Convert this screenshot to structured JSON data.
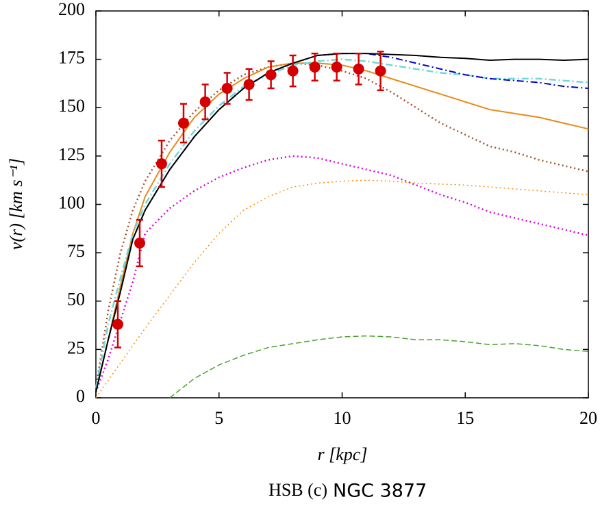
{
  "chart_data": {
    "type": "line",
    "xlabel": "r [kpc]",
    "ylabel": "v(r) [km s⁻¹]",
    "caption": {
      "sample": "HSB (c)",
      "galaxy": "NGC 3877"
    },
    "xlim": [
      0,
      20
    ],
    "ylim": [
      0,
      200
    ],
    "xticks": [
      0,
      5,
      10,
      15,
      20
    ],
    "yticks": [
      0,
      25,
      50,
      75,
      100,
      125,
      150,
      175,
      200
    ],
    "x": [
      0,
      0.5,
      1,
      1.5,
      2,
      3,
      4,
      5,
      6,
      7,
      8,
      9,
      10,
      11,
      12,
      13,
      14,
      15,
      16,
      17,
      18,
      19,
      20
    ],
    "series": [
      {
        "color": "#ff8c00",
        "dash": "dotted",
        "width": 1.5,
        "values": [
          0,
          9,
          18,
          27,
          36,
          53,
          70,
          85,
          97,
          104,
          109,
          111,
          112,
          112.5,
          112,
          111,
          110.5,
          110,
          109,
          108,
          107,
          106,
          105
        ]
      },
      {
        "color": "#4aa02c",
        "dash": "dashed",
        "width": 1.5,
        "values": [
          null,
          null,
          null,
          null,
          null,
          0,
          10,
          17,
          22,
          26,
          28,
          30,
          31.5,
          32,
          31.5,
          30,
          30,
          29,
          27.5,
          28,
          27,
          25,
          24
        ]
      },
      {
        "color": "#e000e0",
        "dash": "dotted",
        "width": 2.5,
        "values": [
          3,
          20,
          40,
          60,
          85,
          98,
          107,
          114,
          119,
          123,
          125,
          124,
          121,
          118,
          115,
          110,
          105,
          101,
          96,
          93,
          90,
          87,
          84
        ]
      },
      {
        "color": "#a0522d",
        "dash": "dotted",
        "width": 2.5,
        "values": [
          5,
          45,
          75,
          97,
          112,
          133,
          148,
          159,
          167,
          171,
          173,
          172,
          169,
          165,
          158,
          150,
          142,
          136,
          130,
          127,
          123,
          120,
          117
        ]
      },
      {
        "color": "#e88a1a",
        "dash": "solid",
        "width": 2,
        "values": [
          3,
          30,
          58,
          85,
          104,
          127,
          145,
          157,
          165,
          171,
          173,
          173,
          172,
          169,
          165,
          161,
          157,
          153,
          149,
          147,
          145,
          142,
          139
        ]
      },
      {
        "color": "#70d8d8",
        "dash": "dashdot",
        "width": 2.5,
        "values": [
          5,
          38,
          62,
          85,
          100,
          121,
          138,
          151,
          161,
          167,
          172,
          174,
          175,
          174,
          172,
          170,
          168,
          167,
          165,
          165,
          165,
          164,
          163
        ]
      },
      {
        "color": "#0000cc",
        "dash": "dashdot",
        "width": 2,
        "values": [
          3,
          30,
          55,
          82,
          97,
          118,
          135,
          149,
          160,
          168,
          173,
          177,
          178,
          178,
          176,
          173,
          170,
          167,
          165,
          164,
          163,
          161,
          160
        ]
      },
      {
        "color": "#000000",
        "dash": "solid",
        "width": 2,
        "values": [
          3,
          30,
          55,
          82,
          97,
          118,
          135,
          149,
          160,
          168,
          173,
          177,
          178,
          178,
          177.5,
          177,
          176,
          175.5,
          174.5,
          175,
          175,
          174.5,
          175
        ]
      }
    ],
    "points": {
      "color": "#d40000",
      "x": [
        0.89,
        1.78,
        2.67,
        3.56,
        4.44,
        5.33,
        6.22,
        7.11,
        8.0,
        8.89,
        9.78,
        10.67,
        11.56
      ],
      "values": [
        38,
        80,
        121,
        142,
        153,
        160,
        162,
        167,
        169,
        171,
        171,
        170,
        169
      ],
      "errors": [
        12,
        12,
        12,
        10,
        9,
        8,
        8,
        7,
        8,
        7,
        7,
        8,
        10
      ]
    }
  }
}
